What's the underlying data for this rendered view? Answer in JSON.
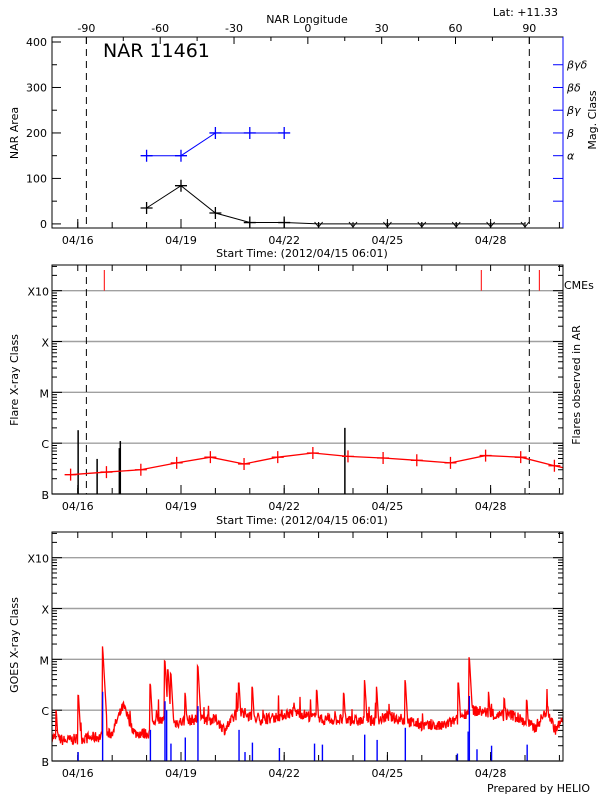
{
  "colors": {
    "axis": "#000000",
    "grid": "#a0a0a0",
    "nar_area": "#000000",
    "mag_class": "#0000ff",
    "goes_mean": "#ff0000",
    "cme": "#ff0000",
    "flare": "#000000",
    "goes_long": "#ff0000",
    "goes_short": "#0000ff"
  },
  "footer": "Prepared by HELIO",
  "chart_data": [
    {
      "type": "line",
      "title": "NAR 11461",
      "annotation": "Lat: +11.33",
      "xlabel": "Start Time: (2012/04/15 06:01)",
      "x2label": "NAR Longitude",
      "ylabel": "NAR Area",
      "y2label": "Mag. Class",
      "xlim": [
        "2012-04-15T06:01",
        "2012-04-30T02:30"
      ],
      "x_ticks": [
        "04/16",
        "04/19",
        "04/22",
        "04/25",
        "04/28"
      ],
      "x2_ticks": [
        "-90",
        "-60",
        "-30",
        "0",
        "30",
        "60",
        "90"
      ],
      "limb_times": [
        "2012-04-16T06:00",
        "2012-04-29T03:00"
      ],
      "ylim": [
        -9,
        411
      ],
      "y_ticks": [
        "0",
        "100",
        "200",
        "300",
        "400"
      ],
      "y2_ticks": [
        "α",
        "β",
        "βγ",
        "βδ",
        "βγδ"
      ],
      "area": {
        "x": [
          "2012-04-18T00:00",
          "2012-04-19T00:00",
          "2012-04-20T00:00",
          "2012-04-21T00:00",
          "2012-04-22T00:00",
          "2012-04-23T00:00",
          "2012-04-24T00:00",
          "2012-04-25T00:00",
          "2012-04-26T00:00",
          "2012-04-27T00:00",
          "2012-04-28T00:00",
          "2012-04-29T00:00"
        ],
        "y": [
          35,
          84,
          24,
          3,
          3,
          0,
          0,
          0,
          0,
          0,
          0,
          0
        ]
      },
      "mag_class": {
        "x": [
          "2012-04-18T00:00",
          "2012-04-19T00:00",
          "2012-04-20T00:00",
          "2012-04-21T00:00",
          "2012-04-22T00:00"
        ],
        "values": [
          "α",
          "α",
          "β",
          "β",
          "β"
        ]
      }
    },
    {
      "type": "line",
      "xlabel": "Start Time: (2012/04/15 06:01)",
      "ylabel": "Flare X-ray Class",
      "y2label": "Flares observed in AR",
      "cme_label": "CMEs",
      "xlim": [
        "2012-04-15T06:01",
        "2012-04-30T02:30"
      ],
      "x_ticks": [
        "04/16",
        "04/19",
        "04/22",
        "04/25",
        "04/28"
      ],
      "y_scale": "log",
      "ylim": [
        1e-07,
        0.0032
      ],
      "y_ticks": [
        {
          "label": "B",
          "flux": 1e-07
        },
        {
          "label": "C",
          "flux": 1e-06
        },
        {
          "label": "M",
          "flux": 1e-05
        },
        {
          "label": "X",
          "flux": 0.0001
        },
        {
          "label": "X10",
          "flux": 0.001
        }
      ],
      "grid": true,
      "goes_daily": {
        "x": [
          "2012-04-15T19:00",
          "2012-04-16T20:00",
          "2012-04-17T20:00",
          "2012-04-18T21:00",
          "2012-04-19T20:30",
          "2012-04-20T20:00",
          "2012-04-21T19:30",
          "2012-04-22T20:00",
          "2012-04-23T20:30",
          "2012-04-24T21:00",
          "2012-04-25T20:30",
          "2012-04-26T20:00",
          "2012-04-27T20:30",
          "2012-04-28T21:00",
          "2012-04-29T20:30"
        ],
        "y": [
          2.4e-07,
          2.7e-07,
          3e-07,
          4.1e-07,
          5.3e-07,
          3.9e-07,
          5.3e-07,
          6.4e-07,
          5.5e-07,
          5.1e-07,
          4.6e-07,
          4.1e-07,
          5.7e-07,
          5.3e-07,
          3.6e-07
        ]
      },
      "flares": {
        "x": [
          "2012-04-16T00:15",
          "2012-04-16T13:30",
          "2012-04-17T05:00",
          "2012-04-17T05:40",
          "2012-04-23T18:20"
        ],
        "y": [
          1.8e-06,
          4.9e-07,
          8e-07,
          1.1e-06,
          2e-06
        ]
      },
      "cmes": [
        "2012-04-16T18:30",
        "2012-04-27T17:30",
        "2012-04-29T10:00"
      ],
      "limb_times": [
        "2012-04-16T06:00",
        "2012-04-29T03:00"
      ]
    },
    {
      "type": "line",
      "ylabel": "GOES X-ray Class",
      "xlim": [
        "2012-04-15T06:01",
        "2012-04-30T02:30"
      ],
      "x_ticks": [
        "04/16",
        "04/19",
        "04/22",
        "04/25",
        "04/28"
      ],
      "y_scale": "log",
      "ylim": [
        1e-07,
        0.0032
      ],
      "y_ticks": [
        {
          "label": "B",
          "flux": 1e-07
        },
        {
          "label": "C",
          "flux": 1e-06
        },
        {
          "label": "M",
          "flux": 1e-05
        },
        {
          "label": "X",
          "flux": 0.0001
        },
        {
          "label": "X10",
          "flux": 0.001
        }
      ],
      "grid": true,
      "goes_long_background": {
        "x": [
          "2012-04-15T06:01",
          "2012-04-15T15:00",
          "2012-04-15T23:00",
          "2012-04-16T15:30",
          "2012-04-16T23:40",
          "2012-04-17T07:40",
          "2012-04-17T15:50",
          "2012-04-18T02:40",
          "2012-04-18T05:20",
          "2012-04-18T19:00",
          "2012-04-19T08:30",
          "2012-04-20T01:00",
          "2012-04-20T06:15",
          "2012-04-20T17:00",
          "2012-04-21T04:00",
          "2012-04-21T15:00",
          "2012-04-22T07:00",
          "2012-04-22T18:00",
          "2012-04-23T02:00",
          "2012-04-23T16:00",
          "2012-04-24T08:00",
          "2012-04-24T19:00",
          "2012-04-25T00:00",
          "2012-04-25T14:00",
          "2012-04-26T03:30",
          "2012-04-26T14:00",
          "2012-04-27T01:00",
          "2012-04-27T09:00",
          "2012-04-27T20:00",
          "2012-04-28T04:00",
          "2012-04-28T15:00",
          "2012-04-29T07:00",
          "2012-04-29T15:30",
          "2012-04-29T21:00",
          "2012-04-30T02:30"
        ],
        "y": [
          3e-07,
          2.5e-07,
          2.7e-07,
          3e-07,
          3.5e-07,
          1.2e-06,
          3.5e-07,
          3.5e-07,
          6.5e-07,
          5.6e-07,
          6.5e-07,
          6.5e-07,
          4.1e-07,
          1e-06,
          6.5e-07,
          6.9e-07,
          9.3e-07,
          7.6e-07,
          6.5e-07,
          6.5e-07,
          6e-07,
          6.5e-07,
          7.6e-07,
          6e-07,
          4.8e-07,
          4.8e-07,
          6.5e-07,
          1e-06,
          9.3e-07,
          7.6e-07,
          8.1e-07,
          4.5e-07,
          1e-06,
          4.1e-07,
          6.5e-07
        ]
      },
      "goes_long_peaks": {
        "x": [
          "2012-04-15T09:00",
          "2012-04-16T00:30",
          "2012-04-16T17:20",
          "2012-04-17T07:40",
          "2012-04-18T02:40",
          "2012-04-18T12:50",
          "2012-04-18T15:00",
          "2012-04-18T17:00",
          "2012-04-19T03:00",
          "2012-04-19T11:50",
          "2012-04-20T16:30",
          "2012-04-21T01:50",
          "2012-04-22T07:00",
          "2012-04-22T22:50",
          "2012-04-23T17:40",
          "2012-04-24T08:10",
          "2012-04-24T16:30",
          "2012-04-25T12:30",
          "2012-04-27T01:40",
          "2012-04-27T09:10",
          "2012-04-27T22:40",
          "2012-04-28T09:40",
          "2012-04-29T01:20",
          "2012-04-29T16:00"
        ],
        "y": [
          1e-06,
          1.95e-06,
          1.8e-05,
          1.3e-06,
          3.3e-06,
          9.3e-06,
          6.2e-06,
          5.3e-06,
          2.2e-06,
          7.4e-06,
          3.4e-06,
          2.9e-06,
          1.4e-06,
          2.5e-06,
          2.2e-06,
          3.9e-06,
          2.9e-06,
          3.9e-06,
          3.4e-06,
          1.1e-05,
          2.3e-06,
          1.7e-06,
          1.6e-06,
          1.2e-06
        ]
      },
      "goes_short_peaks": {
        "x": [
          "2012-04-16T00:15",
          "2012-04-16T17:20",
          "2012-04-18T02:40",
          "2012-04-18T12:50",
          "2012-04-18T14:00",
          "2012-04-18T17:00",
          "2012-04-19T03:00",
          "2012-04-19T11:50",
          "2012-04-20T16:30",
          "2012-04-20T20:40",
          "2012-04-21T01:50",
          "2012-04-21T20:40",
          "2012-04-22T21:10",
          "2012-04-23T02:40",
          "2012-04-24T08:10",
          "2012-04-24T16:50",
          "2012-04-25T12:30",
          "2012-04-27T00:50",
          "2012-04-27T08:20",
          "2012-04-27T09:10",
          "2012-04-27T14:30",
          "2012-04-28T00:40",
          "2012-04-29T01:30"
        ],
        "y": [
          1.5e-07,
          2.3e-06,
          4.1e-07,
          1.5e-06,
          1e-06,
          2.2e-07,
          2.9e-07,
          1.2e-06,
          4.1e-07,
          1.5e-07,
          2.3e-07,
          1.8e-07,
          2.2e-07,
          2.1e-07,
          3.3e-07,
          2.6e-07,
          4.5e-07,
          1.4e-07,
          3.8e-07,
          1.9e-06,
          1.7e-07,
          2e-07,
          2.1e-07
        ]
      }
    }
  ]
}
